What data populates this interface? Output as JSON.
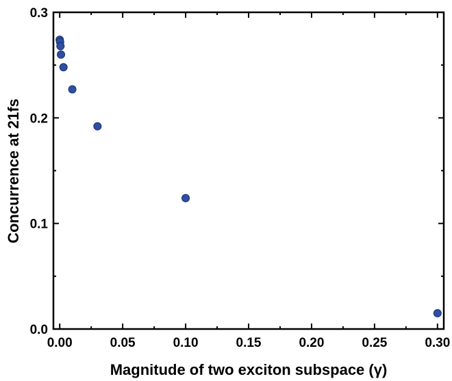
{
  "chart_data": {
    "type": "scatter",
    "xlabel": "Magnitude of two exciton subspace (γ)",
    "ylabel": "Concurrence at 21fs",
    "xlim": [
      -0.005,
      0.305
    ],
    "ylim": [
      0.0,
      0.3
    ],
    "x_ticks": [
      0.0,
      0.05,
      0.1,
      0.15,
      0.2,
      0.25,
      0.3
    ],
    "x_tick_labels": [
      "0.00",
      "0.05",
      "0.10",
      "0.15",
      "0.20",
      "0.25",
      "0.30"
    ],
    "y_ticks": [
      0.0,
      0.1,
      0.2,
      0.3
    ],
    "y_tick_labels": [
      "0.0",
      "0.1",
      "0.2",
      "0.3"
    ],
    "grid": false,
    "marker_color": "#2e4fa3",
    "marker_edge_color": "#1a2f6b",
    "series": [
      {
        "x": [
          0.0,
          0.0003,
          0.0006,
          0.001,
          0.003,
          0.01,
          0.03,
          0.1,
          0.3
        ],
        "y": [
          0.274,
          0.272,
          0.268,
          0.26,
          0.248,
          0.227,
          0.192,
          0.124,
          0.015
        ]
      }
    ]
  }
}
